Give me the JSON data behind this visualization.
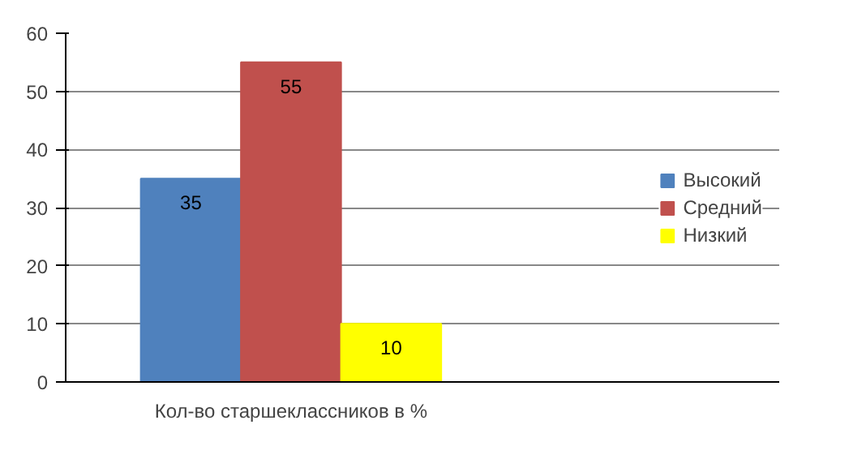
{
  "chart_data": {
    "type": "bar",
    "categories": [
      "Кол-во старшеклассников в %"
    ],
    "series": [
      {
        "name": "Высокий",
        "color": "#4f81bd",
        "values": [
          35
        ]
      },
      {
        "name": "Средний",
        "color": "#c0504d",
        "values": [
          55
        ]
      },
      {
        "name": "Низкий",
        "color": "#ffff00",
        "values": [
          10
        ]
      }
    ],
    "ylim": [
      0,
      60
    ],
    "yticks": [
      0,
      10,
      20,
      30,
      40,
      50,
      60
    ],
    "grid": "y",
    "legend": "right",
    "data_labels": true
  }
}
